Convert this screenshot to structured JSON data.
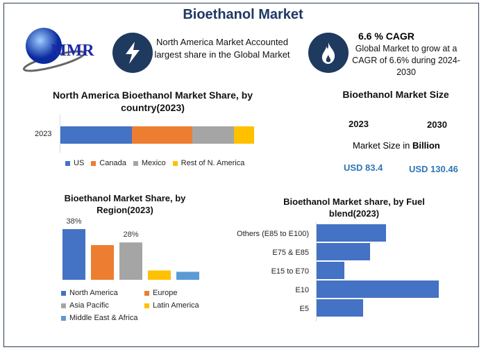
{
  "header": {
    "title": "Bioethanol Market",
    "logo_text": "MMR"
  },
  "highlights": [
    {
      "icon": "lightning-icon",
      "text": "North America Market Accounted largest share in the Global Market"
    },
    {
      "icon": "flame-icon",
      "title": "6.6 % CAGR",
      "text": "Global Market to grow at a CAGR of 6.6% during 2024-2030"
    }
  ],
  "market_size": {
    "title": "Bioethanol Market Size",
    "year1": "2023",
    "year2": "2030",
    "unit_label": "Market Size in ",
    "unit_bold": "Billion",
    "value1": "USD 83.4",
    "value2": "USD 130.46"
  },
  "chart_data": [
    {
      "type": "bar",
      "orientation": "horizontal-stacked",
      "title": "North America Bioethanol Market Share, by country(2023)",
      "categories": [
        "2023"
      ],
      "series": [
        {
          "name": "US",
          "values": [
            37
          ],
          "color": "#4472c4"
        },
        {
          "name": "Canada",
          "values": [
            31
          ],
          "color": "#ed7d31"
        },
        {
          "name": "Mexico",
          "values": [
            21.5
          ],
          "color": "#a5a5a5"
        },
        {
          "name": "Rest of N. America",
          "values": [
            10.5
          ],
          "color": "#ffc000"
        }
      ],
      "legend": "bottom"
    },
    {
      "type": "bar",
      "title": "Bioethanol Market Share, by Region(2023)",
      "categories": [
        "North America",
        "Europe",
        "Asia Pacific",
        "Latin America",
        "Middle East & Africa"
      ],
      "values": [
        38,
        26,
        28,
        7,
        6
      ],
      "data_labels": [
        "38%",
        "",
        "28%",
        "",
        ""
      ],
      "colors": [
        "#4472c4",
        "#ed7d31",
        "#a5a5a5",
        "#ffc000",
        "#5b9bd5"
      ],
      "legend": "bottom"
    },
    {
      "type": "bar",
      "orientation": "horizontal",
      "title": "Bioethanol Market share, by Fuel blend(2023)",
      "categories": [
        "Others (E85 to E100)",
        "E75 & E85",
        "E15 to E70",
        "E10",
        "E5"
      ],
      "values": [
        100,
        77,
        40,
        176,
        67
      ],
      "color": "#4472c4"
    }
  ]
}
